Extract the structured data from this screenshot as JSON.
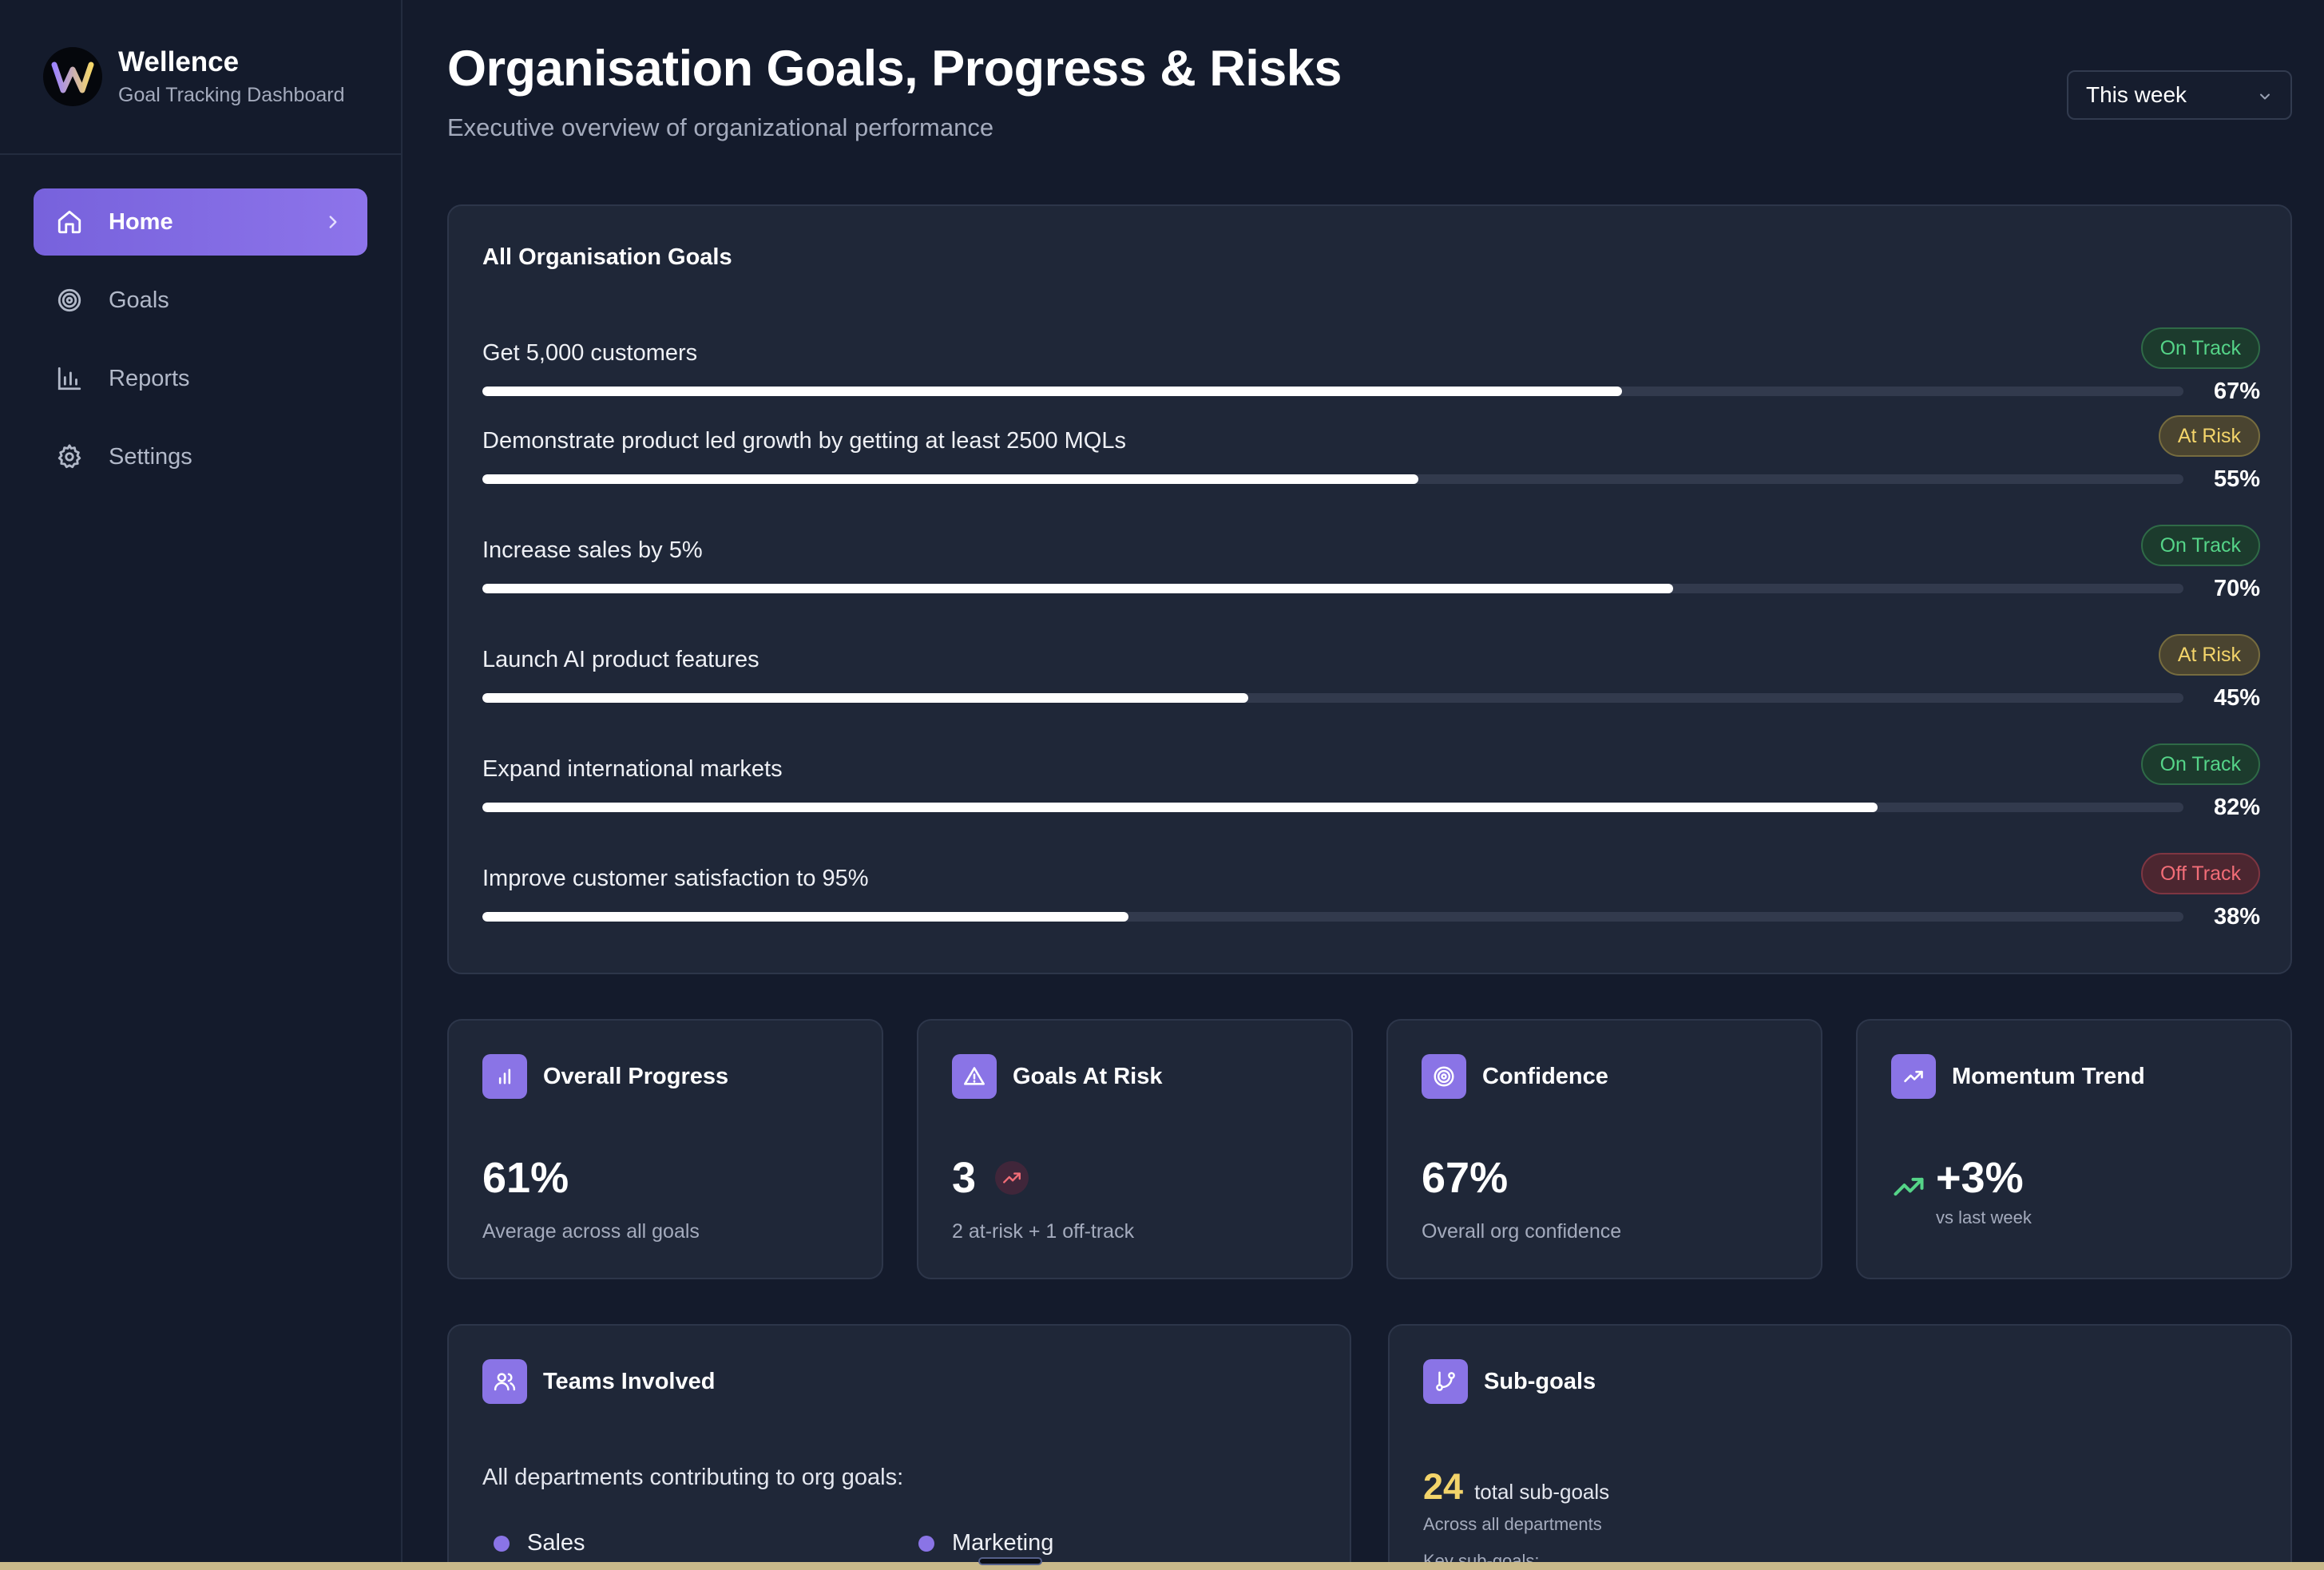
{
  "brand": {
    "logo_letter": "W",
    "name": "Wellence",
    "subtitle": "Goal Tracking Dashboard"
  },
  "sidebar": {
    "items": [
      {
        "label": "Home",
        "icon": "home-icon",
        "active": true
      },
      {
        "label": "Goals",
        "icon": "target-icon",
        "active": false
      },
      {
        "label": "Reports",
        "icon": "bar-chart-icon",
        "active": false
      },
      {
        "label": "Settings",
        "icon": "gear-icon",
        "active": false
      }
    ]
  },
  "header": {
    "title": "Organisation Goals, Progress & Risks",
    "subtitle": "Executive overview of organizational performance",
    "period": "This week"
  },
  "goals_card": {
    "title": "All Organisation Goals",
    "goals": [
      {
        "name": "Get 5,000 customers",
        "status": "On Track",
        "progress": 0.67,
        "pct_label": "67%"
      },
      {
        "name": "Demonstrate product led growth by getting at least 2500 MQLs",
        "status": "At Risk",
        "progress": 0.55,
        "pct_label": "55%"
      },
      {
        "name": "Increase sales by 5%",
        "status": "On Track",
        "progress": 0.7,
        "pct_label": "70%"
      },
      {
        "name": "Launch AI product features",
        "status": "At Risk",
        "progress": 0.45,
        "pct_label": "45%"
      },
      {
        "name": "Expand international markets",
        "status": "On Track",
        "progress": 0.82,
        "pct_label": "82%"
      },
      {
        "name": "Improve customer satisfaction to 95%",
        "status": "Off Track",
        "progress": 0.38,
        "pct_label": "38%"
      }
    ]
  },
  "metrics": {
    "overall": {
      "title": "Overall Progress",
      "value": "61%",
      "sub": "Average across all goals",
      "icon": "bar-chart-icon"
    },
    "at_risk": {
      "title": "Goals At Risk",
      "value": "3",
      "sub": "2 at-risk + 1 off-track",
      "icon": "warning-icon"
    },
    "confidence": {
      "title": "Confidence",
      "value": "67%",
      "sub": "Overall org confidence",
      "icon": "target-icon"
    },
    "momentum": {
      "title": "Momentum Trend",
      "value": "+3%",
      "sub": "vs last week",
      "icon": "trending-up-icon"
    }
  },
  "teams": {
    "title": "Teams Involved",
    "intro": "All departments contributing to org goals:",
    "departments": [
      "Sales",
      "Marketing"
    ]
  },
  "subgoals": {
    "title": "Sub-goals",
    "count": "24",
    "count_label": "total sub-goals",
    "sub": "Across all departments",
    "key_label": "Key sub-goals:"
  },
  "colors": {
    "accent": "#8a74e6",
    "on_track": "#55d488",
    "at_risk": "#f3d46a",
    "off_track": "#f26d77",
    "background": "#141b2c",
    "card": "#1f2738"
  }
}
